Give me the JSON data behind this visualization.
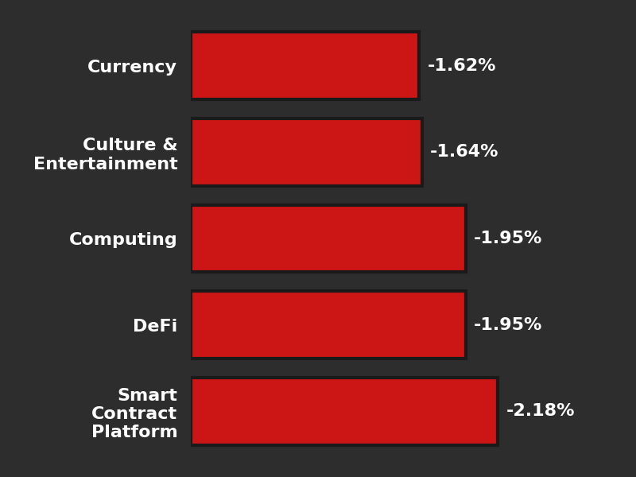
{
  "categories": [
    "Currency",
    "Culture &\nEntertainment",
    "Computing",
    "DeFi",
    "Smart\nContract\nPlatform"
  ],
  "values": [
    1.62,
    1.64,
    1.95,
    1.95,
    2.18
  ],
  "labels": [
    "-1.62%",
    "-1.64%",
    "-1.95%",
    "-1.95%",
    "-2.18%"
  ],
  "bar_color": "#cc1515",
  "background_color": "#2d2d2d",
  "text_color": "#ffffff",
  "figsize": [
    8.0,
    6.0
  ],
  "dpi": 100,
  "label_fontsize": 16,
  "value_fontsize": 16
}
